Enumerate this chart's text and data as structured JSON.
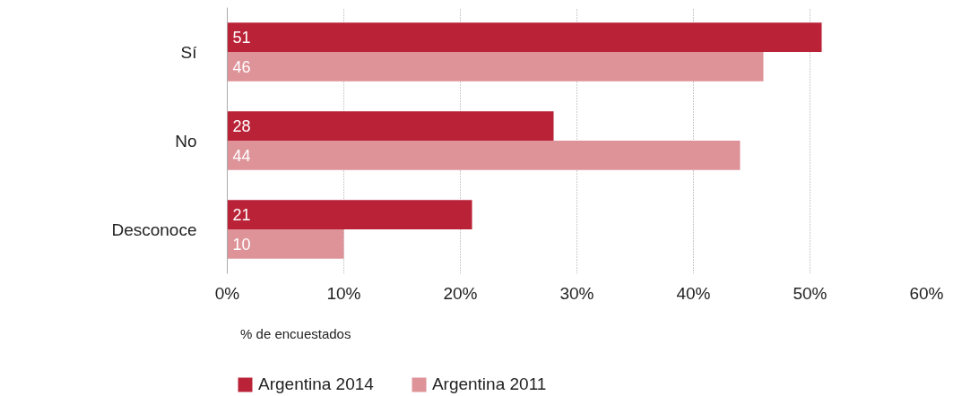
{
  "chart_data": {
    "type": "bar",
    "orientation": "horizontal",
    "categories": [
      "Sí",
      "No",
      "Desconoce"
    ],
    "series": [
      {
        "name": "Argentina 2014",
        "color": "#b92237",
        "values": [
          51,
          28,
          21
        ]
      },
      {
        "name": "Argentina 2011",
        "color": "#de9399",
        "values": [
          46,
          44,
          10
        ]
      }
    ],
    "xlim": [
      0,
      60
    ],
    "xticks": [
      {
        "value": 0,
        "label": "0%"
      },
      {
        "value": 10,
        "label": "10%"
      },
      {
        "value": 20,
        "label": "20%"
      },
      {
        "value": 30,
        "label": "30%"
      },
      {
        "value": 40,
        "label": "40%"
      },
      {
        "value": 50,
        "label": "50%"
      },
      {
        "value": 60,
        "label": "60%"
      }
    ],
    "grid": "x",
    "data_labels": true,
    "legend": "bottom left",
    "annotations": [
      "% de encuestados"
    ]
  }
}
